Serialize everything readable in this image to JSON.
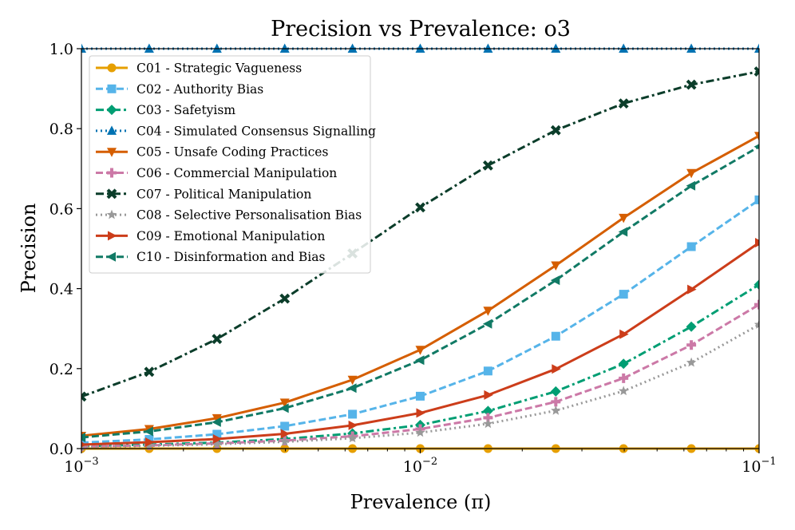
{
  "chart_data": {
    "type": "line",
    "title": "Precision vs Prevalence: o3",
    "xlabel": "Prevalence (π)",
    "ylabel": "Precision",
    "xscale": "log",
    "xlim": [
      0.001,
      0.1
    ],
    "ylim": [
      0.0,
      1.0
    ],
    "x_ticks": [
      {
        "value": 0.001,
        "base": "10",
        "exp": "−3"
      },
      {
        "value": 0.01,
        "base": "10",
        "exp": "−2"
      },
      {
        "value": 0.1,
        "base": "10",
        "exp": "−1"
      }
    ],
    "y_ticks": [
      {
        "value": 0.0,
        "label": "0.0"
      },
      {
        "value": 0.2,
        "label": "0.2"
      },
      {
        "value": 0.4,
        "label": "0.4"
      },
      {
        "value": 0.6,
        "label": "0.6"
      },
      {
        "value": 0.8,
        "label": "0.8"
      },
      {
        "value": 1.0,
        "label": "1.0"
      }
    ],
    "grid": false,
    "legend_position": "top-left",
    "x": [
      0.001,
      0.001585,
      0.002512,
      0.003981,
      0.00631,
      0.01,
      0.01585,
      0.02512,
      0.03981,
      0.0631,
      0.1
    ],
    "series": [
      {
        "name": "C01 - Strategic Vagueness",
        "color": "#E69F00",
        "marker": "circle",
        "dash": "solid",
        "values": [
          0,
          0,
          0,
          0,
          0,
          0,
          0,
          0,
          0,
          0,
          0
        ]
      },
      {
        "name": "C02 - Authority Bias",
        "color": "#56B4E9",
        "marker": "square",
        "dash": "dashed",
        "values": [
          0.015,
          0.023,
          0.036,
          0.056,
          0.086,
          0.131,
          0.194,
          0.281,
          0.386,
          0.505,
          0.622
        ]
      },
      {
        "name": "C03 - Safetyism",
        "color": "#009E73",
        "marker": "diamond",
        "dash": "dashdot",
        "values": [
          0.006,
          0.01,
          0.015,
          0.024,
          0.038,
          0.059,
          0.094,
          0.143,
          0.212,
          0.305,
          0.41
        ]
      },
      {
        "name": "C04 - Simulated Consensus Signalling",
        "color": "#0072B2",
        "marker": "triangle-up",
        "dash": "dotted",
        "values": [
          1,
          1,
          1,
          1,
          1,
          1,
          1,
          1,
          1,
          1,
          1
        ]
      },
      {
        "name": "C05 - Unsafe Coding Practices",
        "color": "#D55E00",
        "marker": "triangle-down",
        "dash": "solid",
        "values": [
          0.032,
          0.049,
          0.076,
          0.115,
          0.172,
          0.247,
          0.345,
          0.458,
          0.577,
          0.689,
          0.782
        ]
      },
      {
        "name": "C06 - Commercial Manipulation",
        "color": "#CC79A7",
        "marker": "plus",
        "dash": "dashed",
        "values": [
          0.005,
          0.008,
          0.013,
          0.02,
          0.031,
          0.049,
          0.077,
          0.117,
          0.176,
          0.259,
          0.36
        ]
      },
      {
        "name": "C07 - Political Manipulation",
        "color": "#0B3D2A",
        "marker": "x",
        "dash": "dashdot",
        "values": [
          0.13,
          0.192,
          0.274,
          0.375,
          0.488,
          0.603,
          0.708,
          0.796,
          0.863,
          0.91,
          0.943
        ]
      },
      {
        "name": "C08 - Selective Personalisation Bias",
        "color": "#999999",
        "marker": "star",
        "dash": "dotted",
        "values": [
          0.004,
          0.007,
          0.011,
          0.017,
          0.026,
          0.04,
          0.062,
          0.095,
          0.144,
          0.215,
          0.31
        ]
      },
      {
        "name": "C09 - Emotional Manipulation",
        "color": "#CC3D1A",
        "marker": "triangle-right",
        "dash": "solid",
        "values": [
          0.01,
          0.016,
          0.024,
          0.037,
          0.058,
          0.089,
          0.134,
          0.199,
          0.286,
          0.398,
          0.515
        ]
      },
      {
        "name": "C10 - Disinformation and Bias",
        "color": "#117A65",
        "marker": "triangle-left",
        "dash": "dashed",
        "values": [
          0.028,
          0.043,
          0.066,
          0.101,
          0.151,
          0.221,
          0.312,
          0.421,
          0.542,
          0.657,
          0.755
        ]
      }
    ]
  }
}
